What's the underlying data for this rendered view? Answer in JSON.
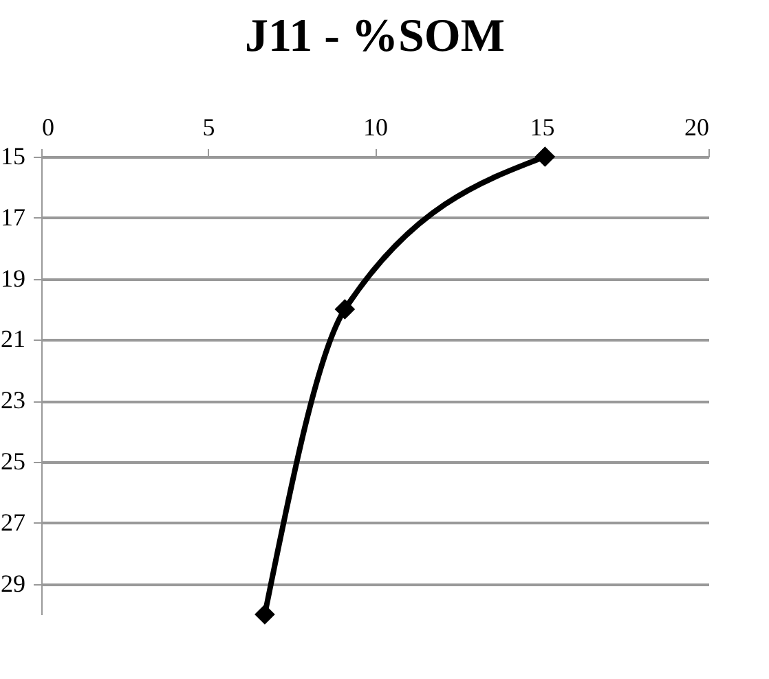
{
  "chart_data": {
    "type": "line",
    "title": "J11 - %SOM",
    "x": [
      15.1,
      9.1,
      6.7
    ],
    "series": [
      {
        "color": "#000000",
        "values": [
          15,
          20,
          30
        ]
      }
    ],
    "xlim": [
      0,
      20
    ],
    "xticks": [
      0,
      5,
      10,
      15,
      20
    ],
    "ylim": [
      30,
      15
    ],
    "yticks": [
      15,
      17,
      19,
      21,
      23,
      25,
      27,
      29
    ],
    "grid": "y",
    "marker": "diamond"
  }
}
